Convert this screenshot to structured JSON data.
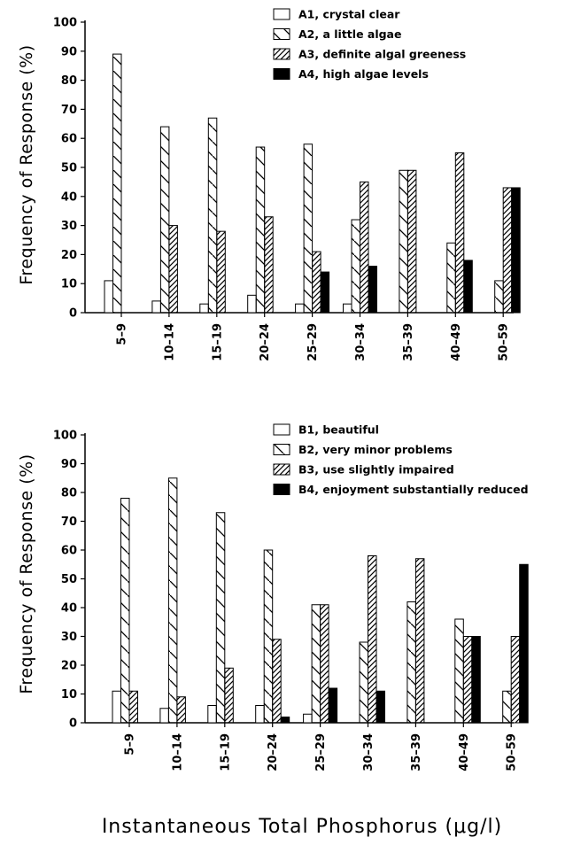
{
  "figure": {
    "xlabel": "Instantaneous Total Phosphorus (μg/l)"
  },
  "chart_data": [
    {
      "type": "bar",
      "ylabel": "Frequency of Response (%)",
      "ylim": [
        0,
        100
      ],
      "yticks": [
        0,
        10,
        20,
        30,
        40,
        50,
        60,
        70,
        80,
        90,
        100
      ],
      "grid": false,
      "legend_position": "top-right",
      "categories": [
        "5–9",
        "10–14",
        "15–19",
        "20–24",
        "25–29",
        "30–34",
        "35–39",
        "40–49",
        "50–59"
      ],
      "series": [
        {
          "name": "A1, crystal clear",
          "pattern": "open",
          "values": [
            11,
            4,
            3,
            6,
            3,
            3,
            0,
            0,
            0
          ]
        },
        {
          "name": "A2, a little algae",
          "pattern": "backslash",
          "values": [
            89,
            64,
            67,
            57,
            58,
            32,
            49,
            24,
            11
          ]
        },
        {
          "name": "A3, definite algal greeness",
          "pattern": "slash",
          "values": [
            0,
            30,
            28,
            33,
            21,
            45,
            49,
            55,
            43
          ]
        },
        {
          "name": "A4, high algae levels",
          "pattern": "solid",
          "values": [
            0,
            0,
            0,
            0,
            14,
            16,
            0,
            18,
            43
          ]
        }
      ]
    },
    {
      "type": "bar",
      "ylabel": "Frequency of Response (%)",
      "ylim": [
        0,
        100
      ],
      "yticks": [
        0,
        10,
        20,
        30,
        40,
        50,
        60,
        70,
        80,
        90,
        100
      ],
      "grid": false,
      "legend_position": "top-right",
      "categories": [
        "5–9",
        "10–14",
        "15–19",
        "20–24",
        "25–29",
        "30–34",
        "35–39",
        "40–49",
        "50–59"
      ],
      "series": [
        {
          "name": "B1, beautiful",
          "pattern": "open",
          "values": [
            11,
            5,
            6,
            6,
            3,
            0,
            0,
            0,
            0
          ]
        },
        {
          "name": "B2, very minor problems",
          "pattern": "backslash",
          "values": [
            78,
            85,
            73,
            60,
            41,
            28,
            42,
            36,
            11
          ]
        },
        {
          "name": "B3, use slightly impaired",
          "pattern": "slash",
          "values": [
            11,
            9,
            19,
            29,
            41,
            58,
            57,
            30,
            30
          ]
        },
        {
          "name": "B4, enjoyment substantially reduced",
          "pattern": "solid",
          "values": [
            0,
            0,
            0,
            2,
            12,
            11,
            0,
            30,
            55
          ]
        }
      ]
    }
  ]
}
